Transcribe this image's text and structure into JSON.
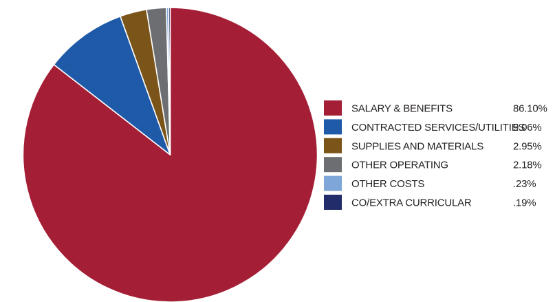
{
  "chart_data": {
    "type": "pie",
    "slices": [
      {
        "label": "SALARY & BENEFITS",
        "value": 86.1,
        "value_text": "86.10%",
        "color": "#a41e35"
      },
      {
        "label": "CONTRACTED SERVICES/UTILITIES",
        "value": 9.06,
        "value_text": "9.06%",
        "color": "#1f5aa8"
      },
      {
        "label": "SUPPLIES AND MATERIALS",
        "value": 2.95,
        "value_text": "2.95%",
        "color": "#7a5418"
      },
      {
        "label": "OTHER OPERATING",
        "value": 2.18,
        "value_text": "2.18%",
        "color": "#6d6e71"
      },
      {
        "label": "OTHER COSTS",
        "value": 0.23,
        "value_text": ".23%",
        "color": "#7ea6d8"
      },
      {
        "label": "CO/EXTRA CURRICULAR",
        "value": 0.19,
        "value_text": ".19%",
        "color": "#232c6a"
      }
    ],
    "start_angle": "12 o'clock",
    "direction": "clockwise",
    "legend_placement": "right"
  }
}
